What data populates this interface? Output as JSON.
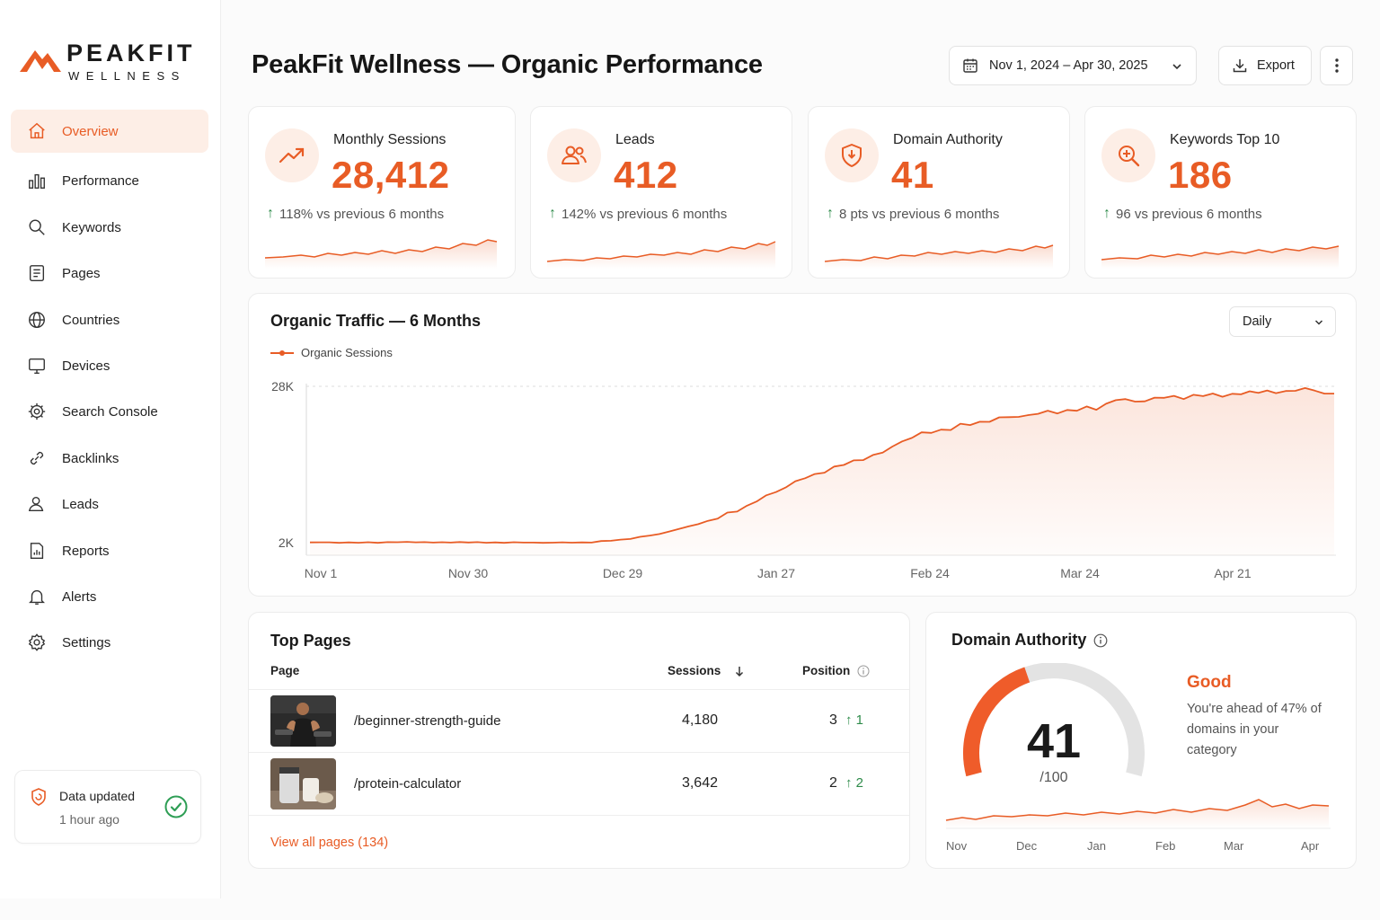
{
  "brand": {
    "name": "PEAKFIT",
    "sub": "WELLNESS",
    "accent": "#e85c25"
  },
  "sidebar": {
    "items": [
      {
        "label": "Overview",
        "icon": "home-icon",
        "active": true
      },
      {
        "label": "Performance",
        "icon": "bar-chart-icon"
      },
      {
        "label": "Keywords",
        "icon": "search-icon"
      },
      {
        "label": "Pages",
        "icon": "document-icon"
      },
      {
        "label": "Countries",
        "icon": "globe-icon"
      },
      {
        "label": "Devices",
        "icon": "monitor-icon"
      },
      {
        "label": "Search Console",
        "icon": "search-console-icon"
      },
      {
        "label": "Backlinks",
        "icon": "link-icon"
      },
      {
        "label": "Leads",
        "icon": "user-icon"
      },
      {
        "label": "Reports",
        "icon": "report-icon"
      },
      {
        "label": "Alerts",
        "icon": "bell-icon"
      },
      {
        "label": "Settings",
        "icon": "gear-icon"
      }
    ],
    "status": {
      "title": "Data updated",
      "subtitle": "1 hour ago"
    }
  },
  "header": {
    "title": "PeakFit Wellness — Organic Performance",
    "date_range": "Nov 1, 2024 – Apr 30, 2025",
    "export_label": "Export"
  },
  "kpis": [
    {
      "label": "Monthly Sessions",
      "value": "28,412",
      "delta": "118% vs previous 6 months",
      "icon": "trend-up-icon"
    },
    {
      "label": "Leads",
      "value": "412",
      "delta": "142% vs previous 6 months",
      "icon": "users-icon"
    },
    {
      "label": "Domain Authority",
      "value": "41",
      "delta": "8 pts vs previous 6 months",
      "icon": "shield-icon"
    },
    {
      "label": "Keywords Top 10",
      "value": "186",
      "delta": "96 vs previous 6 months",
      "icon": "zoom-in-icon"
    }
  ],
  "traffic": {
    "title": "Organic Traffic — 6 Months",
    "legend": "Organic Sessions",
    "granularity": "Daily"
  },
  "chart_data": {
    "type": "line",
    "title": "Organic Traffic — 6 Months",
    "series": [
      {
        "name": "Organic Sessions",
        "color": "#e85c25"
      }
    ],
    "x_ticks": [
      "Nov 1",
      "Nov 30",
      "Dec 29",
      "Jan 27",
      "Feb 24",
      "Mar 24",
      "Apr 21"
    ],
    "y_ticks": [
      "28K",
      "2K"
    ],
    "ylim": [
      2000,
      28000
    ],
    "grid": true,
    "area_fill": true,
    "points": [
      [
        0,
        2200
      ],
      [
        10,
        2150
      ],
      [
        20,
        2250
      ],
      [
        29,
        2200
      ],
      [
        40,
        2180
      ],
      [
        50,
        2150
      ],
      [
        58,
        2200
      ],
      [
        66,
        2800
      ],
      [
        72,
        3600
      ],
      [
        78,
        4800
      ],
      [
        84,
        6200
      ],
      [
        90,
        8200
      ],
      [
        96,
        10600
      ],
      [
        100,
        12200
      ],
      [
        106,
        14000
      ],
      [
        112,
        15600
      ],
      [
        118,
        17000
      ],
      [
        122,
        19000
      ],
      [
        126,
        20100
      ],
      [
        132,
        21100
      ],
      [
        140,
        22400
      ],
      [
        148,
        23300
      ],
      [
        156,
        24000
      ],
      [
        162,
        24400
      ],
      [
        166,
        25800
      ],
      [
        170,
        25500
      ],
      [
        174,
        26000
      ],
      [
        180,
        26300
      ],
      [
        190,
        26700
      ],
      [
        199,
        27100
      ],
      [
        205,
        27500
      ],
      [
        211,
        26800
      ]
    ]
  },
  "top_pages": {
    "title": "Top Pages",
    "columns": {
      "page": "Page",
      "sessions": "Sessions",
      "position": "Position"
    },
    "rows": [
      {
        "page": "/beginner-strength-guide",
        "sessions": "4,180",
        "position": "3",
        "change": "1"
      },
      {
        "page": "/protein-calculator",
        "sessions": "3,642",
        "position": "2",
        "change": "2"
      }
    ],
    "view_all": "View all pages (134)"
  },
  "domain_authority": {
    "title": "Domain Authority",
    "value": "41",
    "max": "/100",
    "score": 41,
    "status": "Good",
    "description": "You're ahead of 47% of domains in your category",
    "months": [
      "Nov",
      "Dec",
      "Jan",
      "Feb",
      "Mar",
      "Apr"
    ]
  }
}
